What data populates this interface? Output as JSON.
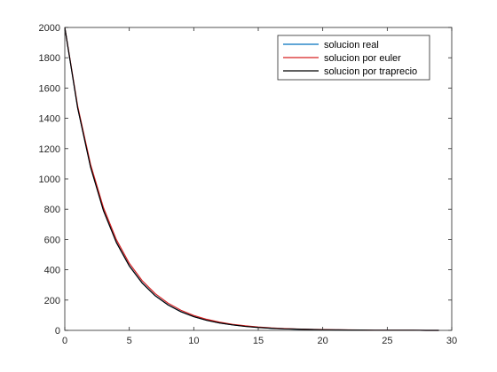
{
  "chart_data": {
    "type": "line",
    "title": "",
    "xlabel": "",
    "ylabel": "",
    "xlim": [
      0,
      30
    ],
    "ylim": [
      0,
      2000
    ],
    "xticks": [
      0,
      5,
      10,
      15,
      20,
      25,
      30
    ],
    "yticks": [
      0,
      200,
      400,
      600,
      800,
      1000,
      1200,
      1400,
      1600,
      1800,
      2000
    ],
    "grid": false,
    "legend_position": "top-right",
    "x": [
      0,
      1,
      2,
      3,
      4,
      5,
      6,
      7,
      8,
      9,
      10,
      11,
      12,
      13,
      14,
      15,
      16,
      17,
      18,
      19,
      20,
      21,
      22,
      23,
      24,
      25,
      26,
      27,
      28,
      29
    ],
    "series": [
      {
        "name": "solucion real",
        "color": "#0072bd",
        "values": [
          2000,
          1469,
          1079,
          792,
          582,
          427,
          314,
          230,
          169,
          124,
          91,
          67,
          49,
          36,
          27,
          20,
          14,
          11,
          8,
          6,
          4,
          3,
          2,
          2,
          1,
          1,
          1,
          1,
          0,
          0
        ]
      },
      {
        "name": "solucion por euler",
        "color": "#d62020",
        "values": [
          2000,
          1480,
          1095,
          810,
          599,
          443,
          328,
          243,
          180,
          133,
          98,
          73,
          54,
          40,
          30,
          22,
          16,
          12,
          9,
          7,
          5,
          4,
          3,
          2,
          1,
          1,
          1,
          1,
          0,
          0
        ]
      },
      {
        "name": "solucion por traprecio",
        "color": "#000000",
        "values": [
          2000,
          1468,
          1077,
          790,
          580,
          425,
          312,
          229,
          168,
          123,
          90,
          66,
          49,
          36,
          26,
          19,
          14,
          10,
          8,
          6,
          4,
          3,
          2,
          2,
          1,
          1,
          1,
          1,
          0,
          0
        ]
      }
    ]
  }
}
